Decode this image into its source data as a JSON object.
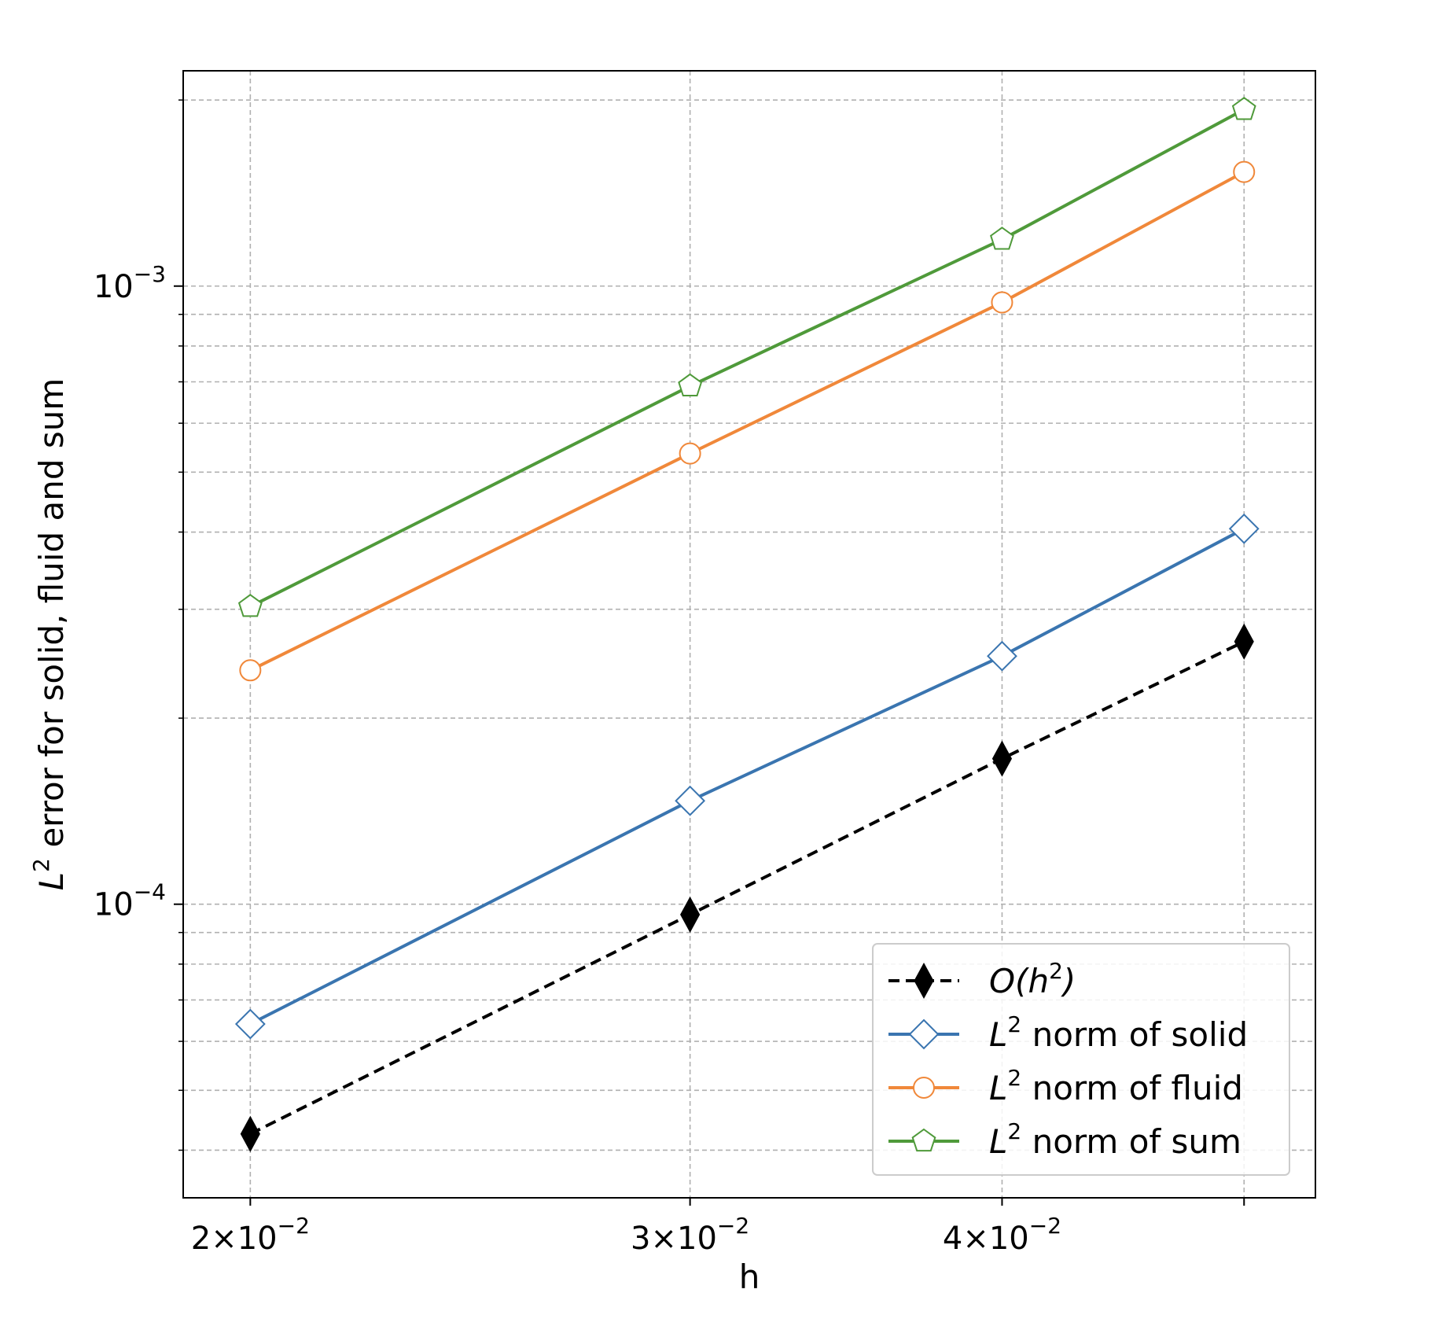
{
  "chart_data": {
    "type": "line",
    "xlabel": "h",
    "ylabel": "L² error for solid, fluid and sum",
    "xscale": "log",
    "yscale": "log",
    "xlim": [
      0.0188,
      0.0534
    ],
    "ylim": [
      3.35e-05,
      0.00223
    ],
    "grid": true,
    "legend_position": "lower-right",
    "x": [
      0.02,
      0.03,
      0.04,
      0.05
    ],
    "x_ticks": [
      {
        "value": 0.02,
        "base": "2",
        "exp": "−2"
      },
      {
        "value": 0.03,
        "base": "3",
        "exp": "−2"
      },
      {
        "value": 0.04,
        "base": "4",
        "exp": "−2"
      }
    ],
    "y_ticks": [
      {
        "value": 0.001,
        "exp": "−3"
      },
      {
        "value": 0.0001,
        "exp": "−4"
      }
    ],
    "series": [
      {
        "name": "O(h²)",
        "color": "#000000",
        "marker": "thin-diamond",
        "dashed": true,
        "values": [
          4.25e-05,
          9.62e-05,
          0.000172,
          0.000266
        ]
      },
      {
        "name": "L² norm of solid",
        "color": "#3a75b0",
        "marker": "diamond",
        "dashed": false,
        "values": [
          6.4e-05,
          0.000147,
          0.000252,
          0.000405
        ]
      },
      {
        "name": "L² norm of fluid",
        "color": "#f0883a",
        "marker": "circle",
        "dashed": false,
        "values": [
          0.000239,
          0.000536,
          0.000941,
          0.00153
        ]
      },
      {
        "name": "L² norm of sum",
        "color": "#4f9a3a",
        "marker": "pentagon",
        "dashed": false,
        "values": [
          0.000303,
          0.000689,
          0.00119,
          0.00193
        ]
      }
    ],
    "legend": [
      {
        "prefix": "O(",
        "var": "h",
        "sup": "2",
        "suffix": ")",
        "rest": ""
      },
      {
        "prefix": "",
        "var": "L",
        "sup": "2",
        "suffix": "",
        "rest": " norm of solid"
      },
      {
        "prefix": "",
        "var": "L",
        "sup": "2",
        "suffix": "",
        "rest": " norm of fluid"
      },
      {
        "prefix": "",
        "var": "L",
        "sup": "2",
        "suffix": "",
        "rest": " norm of sum"
      }
    ],
    "ylabel_parts": {
      "var": "L",
      "sup": "2",
      "rest": " error for solid, fluid and sum"
    }
  }
}
